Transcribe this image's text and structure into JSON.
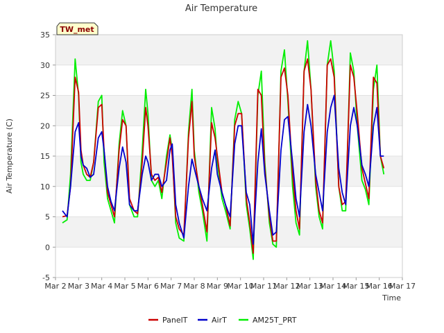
{
  "chart_data": {
    "type": "line",
    "title": "Air Temperature",
    "xlabel": "Time",
    "ylabel": "Air Temperature (C)",
    "site_badge": "TW_met",
    "ylim": [
      -5,
      35
    ],
    "yticks": [
      -5,
      0,
      5,
      10,
      15,
      20,
      25,
      30,
      35
    ],
    "xlim": [
      2,
      17
    ],
    "xticks": [
      2,
      3,
      4,
      5,
      6,
      7,
      8,
      9,
      10,
      11,
      12,
      13,
      14,
      15,
      16,
      17
    ],
    "xtick_labels": [
      "Mar 2",
      "Mar 3",
      "Mar 4",
      "Mar 5",
      "Mar 6",
      "Mar 7",
      "Mar 8",
      "Mar 9",
      "Mar 10",
      "Mar 11",
      "Mar 12",
      "Mar 13",
      "Mar 14",
      "Mar 15",
      "Mar 16",
      "Mar 17"
    ],
    "grid": "horizontal bands",
    "legend_position": "bottom",
    "colors": {
      "PanelT": "#cc0000",
      "AirT": "#0000cc",
      "AM25T_PRT": "#00ee00",
      "band": "#f2f2f2",
      "badge_bg": "#ffffcc"
    },
    "x": [
      2.3,
      2.5,
      2.65,
      2.85,
      3.0,
      3.1,
      3.2,
      3.35,
      3.5,
      3.65,
      3.85,
      4.0,
      4.1,
      4.25,
      4.4,
      4.55,
      4.75,
      4.9,
      5.05,
      5.2,
      5.4,
      5.55,
      5.75,
      5.9,
      6.0,
      6.15,
      6.3,
      6.45,
      6.6,
      6.8,
      6.95,
      7.05,
      7.2,
      7.35,
      7.55,
      7.75,
      7.9,
      8.0,
      8.2,
      8.35,
      8.55,
      8.75,
      8.9,
      9.0,
      9.2,
      9.35,
      9.55,
      9.75,
      9.9,
      10.05,
      10.25,
      10.4,
      10.55,
      10.75,
      10.9,
      11.05,
      11.25,
      11.4,
      11.55,
      11.75,
      11.9,
      12.05,
      12.25,
      12.4,
      12.55,
      12.75,
      12.9,
      13.05,
      13.25,
      13.4,
      13.55,
      13.75,
      13.9,
      14.05,
      14.25,
      14.4,
      14.55,
      14.75,
      14.9,
      15.05,
      15.25,
      15.4,
      15.55,
      15.75,
      15.9,
      16.05,
      16.2
    ],
    "series": [
      {
        "name": "PanelT",
        "values": [
          5.0,
          5.2,
          10.0,
          28.0,
          25.5,
          16.0,
          13.5,
          12.0,
          11.5,
          14.0,
          23.0,
          23.5,
          16.0,
          9.0,
          7.0,
          5.0,
          16.0,
          21.0,
          20.0,
          8.0,
          6.0,
          5.5,
          14.0,
          23.0,
          20.0,
          12.0,
          11.0,
          11.5,
          9.0,
          14.0,
          18.0,
          15.0,
          5.0,
          3.0,
          2.0,
          18.0,
          24.0,
          15.0,
          10.0,
          7.0,
          2.5,
          20.5,
          18.0,
          15.0,
          9.0,
          7.0,
          3.5,
          20.0,
          22.0,
          22.0,
          8.0,
          4.0,
          -1.0,
          26.0,
          25.0,
          13.0,
          5.0,
          1.0,
          1.0,
          28.0,
          29.5,
          25.0,
          12.0,
          6.0,
          3.0,
          29.0,
          31.0,
          26.0,
          11.0,
          6.0,
          4.0,
          30.0,
          31.0,
          28.0,
          10.0,
          7.0,
          7.5,
          30.0,
          28.0,
          22.0,
          13.0,
          10.5,
          8.0,
          28.0,
          27.0,
          15.0,
          13.0
        ]
      },
      {
        "name": "AirT",
        "values": [
          6.0,
          5.0,
          10.0,
          19.0,
          20.5,
          15.0,
          13.5,
          13.0,
          11.5,
          12.0,
          18.0,
          19.0,
          16.0,
          10.0,
          7.5,
          6.0,
          13.0,
          16.5,
          14.0,
          7.0,
          6.0,
          6.0,
          12.0,
          15.0,
          14.0,
          11.0,
          12.0,
          12.0,
          10.0,
          11.0,
          16.0,
          17.0,
          7.0,
          4.0,
          1.5,
          10.0,
          14.5,
          13.0,
          10.0,
          8.0,
          6.0,
          13.0,
          16.0,
          12.0,
          9.0,
          7.0,
          5.0,
          17.0,
          20.0,
          20.0,
          9.0,
          7.0,
          0.5,
          14.0,
          19.5,
          12.0,
          6.0,
          2.0,
          2.5,
          16.0,
          21.0,
          21.5,
          14.0,
          8.0,
          5.0,
          19.0,
          23.5,
          20.0,
          12.0,
          9.0,
          6.0,
          19.0,
          23.0,
          25.0,
          13.0,
          9.0,
          7.0,
          20.0,
          23.0,
          20.0,
          13.5,
          12.0,
          10.0,
          20.0,
          23.0,
          15.0,
          15.0
        ]
      },
      {
        "name": "AM25T_PRT",
        "values": [
          4.0,
          4.5,
          12.0,
          31.0,
          25.0,
          14.0,
          12.0,
          11.0,
          11.0,
          14.0,
          24.0,
          25.0,
          14.0,
          8.0,
          6.0,
          4.0,
          17.0,
          22.5,
          20.0,
          7.0,
          5.0,
          5.0,
          16.0,
          26.0,
          22.0,
          11.0,
          10.0,
          11.0,
          8.0,
          15.0,
          18.5,
          16.0,
          4.0,
          1.5,
          1.0,
          19.0,
          26.0,
          16.0,
          9.0,
          6.0,
          1.0,
          23.0,
          19.5,
          14.0,
          8.0,
          6.0,
          3.0,
          21.0,
          24.0,
          22.0,
          7.0,
          3.0,
          -2.0,
          25.0,
          29.0,
          14.0,
          4.0,
          0.5,
          0.0,
          29.0,
          32.5,
          24.0,
          10.0,
          4.0,
          2.0,
          29.0,
          34.0,
          26.0,
          10.0,
          5.0,
          3.0,
          30.0,
          34.0,
          29.0,
          10.0,
          6.0,
          6.0,
          32.0,
          29.0,
          20.0,
          11.0,
          9.5,
          7.0,
          26.0,
          30.0,
          15.0,
          12.0
        ]
      }
    ]
  }
}
